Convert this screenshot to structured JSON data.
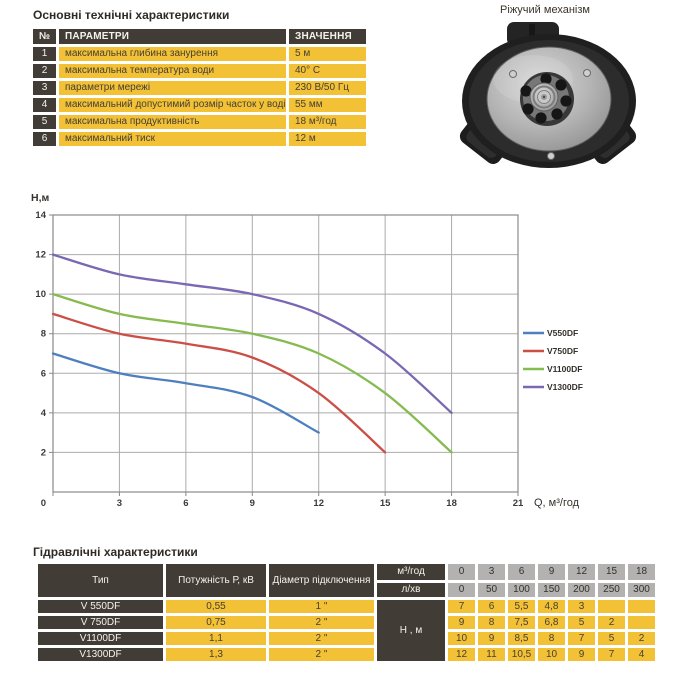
{
  "colors": {
    "dark_cell": "#413c36",
    "yellow_cell": "#f2c136",
    "gray_cell": "#b3b2b0",
    "grid_line": "#ababab",
    "plot_border": "#8a8a8a",
    "tick_text": "#3a3a3a"
  },
  "tech_table": {
    "title": "Основні технічні характеристики",
    "headers": {
      "num": "№",
      "param": "ПАРАМЕТРИ",
      "value": "ЗНАЧЕННЯ"
    },
    "rows": [
      {
        "num": "1",
        "param": "максимальна глибина занурення",
        "value": "5 м"
      },
      {
        "num": "2",
        "param": "максимальна температура води",
        "value": "40° С"
      },
      {
        "num": "3",
        "param": "параметри мережі",
        "value": "230 В/50 Гц"
      },
      {
        "num": "4",
        "param": "максимальний допустимий розмір часток у воді",
        "value": "55 мм"
      },
      {
        "num": "5",
        "param": "максимальна продуктивність",
        "value": "18 м³/год"
      },
      {
        "num": "6",
        "param": "максимальний тиск",
        "value": "12 м"
      }
    ]
  },
  "mechanism": {
    "caption": "Ріжучий механізм"
  },
  "chart_data": {
    "type": "line",
    "title": "",
    "xlabel": "Q,  м³/год",
    "ylabel": "Н,м",
    "xlim": [
      0,
      21
    ],
    "ylim": [
      0,
      14
    ],
    "x_ticks": [
      0,
      3,
      6,
      9,
      12,
      15,
      18,
      21
    ],
    "y_ticks": [
      2,
      4,
      6,
      8,
      10,
      12,
      14
    ],
    "grid": true,
    "legend_position": "right",
    "series": [
      {
        "name": "V550DF",
        "color": "#4e7fbe",
        "points": [
          [
            0,
            7
          ],
          [
            3,
            6
          ],
          [
            6,
            5.5
          ],
          [
            9,
            4.8
          ],
          [
            12,
            3
          ]
        ]
      },
      {
        "name": "V750DF",
        "color": "#cb4f47",
        "points": [
          [
            0,
            9
          ],
          [
            3,
            8
          ],
          [
            6,
            7.5
          ],
          [
            9,
            6.8
          ],
          [
            12,
            5
          ],
          [
            15,
            2
          ]
        ]
      },
      {
        "name": "V1100DF",
        "color": "#85bb4f",
        "points": [
          [
            0,
            10
          ],
          [
            3,
            9
          ],
          [
            6,
            8.5
          ],
          [
            9,
            8
          ],
          [
            12,
            7
          ],
          [
            15,
            5
          ],
          [
            18,
            2
          ]
        ]
      },
      {
        "name": "V1300DF",
        "color": "#7a68b2",
        "points": [
          [
            0,
            12
          ],
          [
            3,
            11
          ],
          [
            6,
            10.5
          ],
          [
            9,
            10
          ],
          [
            12,
            9
          ],
          [
            15,
            7
          ],
          [
            18,
            4
          ]
        ]
      }
    ]
  },
  "hydraulic_table": {
    "title": "Гідравлічні характеристики",
    "col_headers": {
      "type": "Тип",
      "power": "Потужність Р, кВ",
      "diameter": "Діаметр підключення"
    },
    "flow_rows": [
      {
        "label": "м³/год",
        "values": [
          "0",
          "3",
          "6",
          "9",
          "12",
          "15",
          "18"
        ]
      },
      {
        "label": "л/хв",
        "values": [
          "0",
          "50",
          "100",
          "150",
          "200",
          "250",
          "300"
        ]
      }
    ],
    "head_label": "Н , м",
    "rows": [
      {
        "type": "V 550DF",
        "power": "0,55",
        "diameter": "1 \"",
        "heads": [
          "7",
          "6",
          "5,5",
          "4,8",
          "3",
          "",
          ""
        ]
      },
      {
        "type": "V 750DF",
        "power": "0,75",
        "diameter": "2 \"",
        "heads": [
          "9",
          "8",
          "7,5",
          "6,8",
          "5",
          "2",
          ""
        ]
      },
      {
        "type": "V1100DF",
        "power": "1,1",
        "diameter": "2 \"",
        "heads": [
          "10",
          "9",
          "8,5",
          "8",
          "7",
          "5",
          "2"
        ]
      },
      {
        "type": "V1300DF",
        "power": "1,3",
        "diameter": "2 \"",
        "heads": [
          "12",
          "11",
          "10,5",
          "10",
          "9",
          "7",
          "4"
        ]
      }
    ]
  }
}
